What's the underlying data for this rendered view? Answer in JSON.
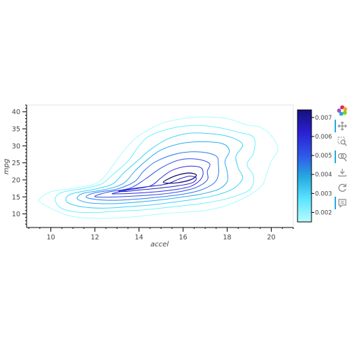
{
  "chart_data": {
    "type": "contour",
    "xlabel": "accel",
    "ylabel": "mpg",
    "x_ticks": [
      10,
      12,
      14,
      16,
      18,
      20
    ],
    "y_ticks": [
      10,
      15,
      20,
      25,
      30,
      35,
      40
    ],
    "xlim": [
      8.9,
      21
    ],
    "ylim": [
      6,
      42
    ],
    "grid": false,
    "colorbar": {
      "ticks": [
        0.002,
        0.003,
        0.004,
        0.005,
        0.006,
        0.007
      ],
      "tick_labels": [
        "0.002",
        "0.003",
        "0.004",
        "0.005",
        "0.006",
        "0.007"
      ],
      "range": [
        0.0015,
        0.0074
      ],
      "colormap": [
        "#b8fbff",
        "#5ce5ff",
        "#26aae1",
        "#2f55e8",
        "#2a1fd4",
        "#16117a"
      ]
    },
    "contours": [
      {
        "level": 0.0015,
        "color": "#a8fbff",
        "points": [
          [
            9.5,
            14.5
          ],
          [
            10,
            16.5
          ],
          [
            11,
            17.5
          ],
          [
            12,
            18.8
          ],
          [
            12.5,
            21.5
          ],
          [
            13,
            26
          ],
          [
            13.5,
            30
          ],
          [
            14,
            33
          ],
          [
            15,
            36.5
          ],
          [
            16,
            38
          ],
          [
            17,
            38.5
          ],
          [
            18,
            38
          ],
          [
            18.5,
            37
          ],
          [
            19,
            36
          ],
          [
            19.5,
            35.5
          ],
          [
            20,
            33
          ],
          [
            20.3,
            29
          ],
          [
            20,
            25.5
          ],
          [
            19.8,
            22
          ],
          [
            19.6,
            18.5
          ],
          [
            19,
            15.5
          ],
          [
            18,
            12.5
          ],
          [
            17,
            11
          ],
          [
            16,
            10.5
          ],
          [
            15,
            10
          ],
          [
            14,
            9.3
          ],
          [
            13,
            8.8
          ],
          [
            12,
            8.7
          ],
          [
            11,
            9.2
          ],
          [
            10.2,
            11
          ],
          [
            9.5,
            13.5
          ]
        ]
      },
      {
        "level": 0.002,
        "color": "#6ef0ff",
        "points": [
          [
            10.2,
            14.5
          ],
          [
            10.5,
            16.3
          ],
          [
            11.5,
            17.5
          ],
          [
            12.3,
            18.8
          ],
          [
            12.8,
            21.5
          ],
          [
            13.5,
            25.5
          ],
          [
            14,
            30
          ],
          [
            14.5,
            33
          ],
          [
            15.5,
            35.2
          ],
          [
            16.5,
            36
          ],
          [
            17.5,
            35.5
          ],
          [
            18.5,
            34
          ],
          [
            19.2,
            32.5
          ],
          [
            19.2,
            28
          ],
          [
            18.9,
            24.5
          ],
          [
            19.2,
            21
          ],
          [
            19,
            17
          ],
          [
            18,
            14.5
          ],
          [
            17,
            13.2
          ],
          [
            16,
            12.4
          ],
          [
            15,
            11.7
          ],
          [
            14,
            11.1
          ],
          [
            13,
            10.8
          ],
          [
            12,
            10.4
          ],
          [
            11,
            10.7
          ],
          [
            10.4,
            12
          ]
        ]
      },
      {
        "level": 0.0027,
        "color": "#3dd3f5",
        "points": [
          [
            10.7,
            14.7
          ],
          [
            11,
            16
          ],
          [
            12,
            17.3
          ],
          [
            12.8,
            18.8
          ],
          [
            13.3,
            22
          ],
          [
            14,
            26
          ],
          [
            14.5,
            28.8
          ],
          [
            15.3,
            32
          ],
          [
            16.3,
            33.7
          ],
          [
            17.5,
            33.4
          ],
          [
            18.3,
            32.2
          ],
          [
            18.7,
            30.2
          ],
          [
            18.4,
            27
          ],
          [
            18.5,
            23.5
          ],
          [
            18.7,
            20.5
          ],
          [
            18.3,
            17.5
          ],
          [
            17.5,
            15.5
          ],
          [
            16.5,
            14.3
          ],
          [
            15.5,
            13.4
          ],
          [
            14.5,
            12.6
          ],
          [
            13.5,
            12.1
          ],
          [
            12.5,
            11.7
          ],
          [
            11.5,
            12
          ],
          [
            10.8,
            13.2
          ]
        ]
      },
      {
        "level": 0.0033,
        "color": "#2baaf0",
        "points": [
          [
            11.2,
            14.8
          ],
          [
            11.5,
            16.1
          ],
          [
            12.5,
            17.2
          ],
          [
            13.3,
            19
          ],
          [
            13.8,
            22.5
          ],
          [
            14.3,
            25.5
          ],
          [
            15,
            28.8
          ],
          [
            16,
            30.8
          ],
          [
            17,
            31.2
          ],
          [
            17.8,
            30.6
          ],
          [
            18.1,
            28.5
          ],
          [
            17.9,
            25.5
          ],
          [
            18,
            22.5
          ],
          [
            18,
            19.5
          ],
          [
            17.6,
            17.2
          ],
          [
            16.8,
            15.8
          ],
          [
            15.8,
            14.8
          ],
          [
            14.8,
            14
          ],
          [
            13.8,
            13.4
          ],
          [
            12.8,
            13
          ],
          [
            11.8,
            13.2
          ],
          [
            11.3,
            14
          ]
        ]
      },
      {
        "level": 0.0039,
        "color": "#2f79ee",
        "points": [
          [
            11.6,
            15
          ],
          [
            12,
            16.2
          ],
          [
            13,
            17.3
          ],
          [
            13.8,
            19.5
          ],
          [
            14.2,
            22.5
          ],
          [
            14.8,
            25.5
          ],
          [
            15.8,
            27.8
          ],
          [
            16.8,
            28.2
          ],
          [
            17.5,
            27
          ],
          [
            17.6,
            24.5
          ],
          [
            17.6,
            21.5
          ],
          [
            17.4,
            19
          ],
          [
            16.8,
            17
          ],
          [
            16,
            15.8
          ],
          [
            15,
            15
          ],
          [
            14,
            14.4
          ],
          [
            13,
            14
          ],
          [
            12.1,
            14.2
          ]
        ]
      },
      {
        "level": 0.0045,
        "color": "#2f4be8",
        "points": [
          [
            12,
            15.2
          ],
          [
            12.6,
            16.4
          ],
          [
            13.6,
            17.6
          ],
          [
            14.3,
            20.3
          ],
          [
            15,
            23.5
          ],
          [
            15.8,
            25.8
          ],
          [
            16.6,
            26.1
          ],
          [
            17.2,
            24.8
          ],
          [
            17.1,
            22.5
          ],
          [
            17.1,
            20
          ],
          [
            16.6,
            17.8
          ],
          [
            15.9,
            16.6
          ],
          [
            15,
            15.8
          ],
          [
            14,
            15.3
          ],
          [
            13,
            15
          ],
          [
            12.3,
            14.9
          ]
        ]
      },
      {
        "level": 0.0051,
        "color": "#2a2fdc",
        "points": [
          [
            12.8,
            16
          ],
          [
            13.5,
            17
          ],
          [
            14.5,
            18.2
          ],
          [
            15,
            20.6
          ],
          [
            15.5,
            22.8
          ],
          [
            16.2,
            24
          ],
          [
            16.8,
            23.6
          ],
          [
            16.9,
            21.5
          ],
          [
            16.7,
            19.5
          ],
          [
            16.3,
            18
          ],
          [
            15.6,
            17.1
          ],
          [
            14.6,
            16.4
          ],
          [
            13.6,
            16
          ],
          [
            13,
            15.9
          ]
        ]
      },
      {
        "level": 0.0057,
        "color": "#2321c4",
        "points": [
          [
            13.1,
            16.7
          ],
          [
            14,
            17.7
          ],
          [
            15.2,
            18.7
          ],
          [
            15.8,
            20.2
          ],
          [
            16.3,
            21.1
          ],
          [
            16.6,
            20.5
          ],
          [
            16.4,
            19.1
          ],
          [
            15.7,
            18.2
          ],
          [
            14.8,
            17.5
          ],
          [
            14,
            17
          ],
          [
            13.4,
            16.6
          ]
        ]
      },
      {
        "level": 0.0065,
        "color": "#16117a",
        "points": [
          [
            15.1,
            19.3
          ],
          [
            15.4,
            20.5
          ],
          [
            15.8,
            21.5
          ],
          [
            16.3,
            22
          ],
          [
            16.6,
            21.4
          ],
          [
            16.4,
            20.2
          ],
          [
            15.9,
            19.3
          ],
          [
            15.4,
            19
          ]
        ]
      }
    ]
  },
  "toolbar": {
    "items": [
      {
        "name": "bokeh-logo-icon",
        "active": false
      },
      {
        "name": "pan-icon",
        "active": true
      },
      {
        "name": "box-zoom-icon",
        "active": false
      },
      {
        "name": "wheel-zoom-icon",
        "active": true
      },
      {
        "name": "save-icon",
        "active": false
      },
      {
        "name": "reset-icon",
        "active": false
      },
      {
        "name": "hover-icon",
        "active": true
      }
    ]
  }
}
